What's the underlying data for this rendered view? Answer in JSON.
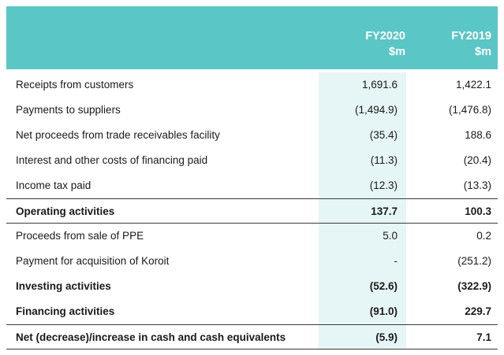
{
  "header": {
    "col1_year": "FY2020",
    "col1_unit": "$m",
    "col2_year": "FY2019",
    "col2_unit": "$m"
  },
  "rows": [
    {
      "label": "Receipts from customers",
      "fy2020": "1,691.6",
      "fy2019": "1,422.1"
    },
    {
      "label": "Payments to suppliers",
      "fy2020": "(1,494.9)",
      "fy2019": "(1,476.8)"
    },
    {
      "label": "Net proceeds from trade receivables facility",
      "fy2020": "(35.4)",
      "fy2019": "188.6"
    },
    {
      "label": "Interest and other costs of financing paid",
      "fy2020": "(11.3)",
      "fy2019": "(20.4)"
    },
    {
      "label": "Income tax paid",
      "fy2020": "(12.3)",
      "fy2019": "(13.3)"
    },
    {
      "label": "Operating activities",
      "fy2020": "137.7",
      "fy2019": "100.3"
    },
    {
      "label": "Proceeds from sale of PPE",
      "fy2020": "5.0",
      "fy2019": "0.2"
    },
    {
      "label": "Payment for acquisition of Koroit",
      "fy2020": "-",
      "fy2019": "(251.2)"
    },
    {
      "label": "Investing activities",
      "fy2020": "(52.6)",
      "fy2019": "(322.9)"
    },
    {
      "label": "Financing activities",
      "fy2020": "(91.0)",
      "fy2019": "229.7"
    },
    {
      "label": "Net (decrease)/increase in cash and cash equivalents",
      "fy2020": "(5.9)",
      "fy2019": "7.1"
    }
  ],
  "colors": {
    "header_bg": "#5bc6c6",
    "highlight_col": "#e6f5f5"
  }
}
